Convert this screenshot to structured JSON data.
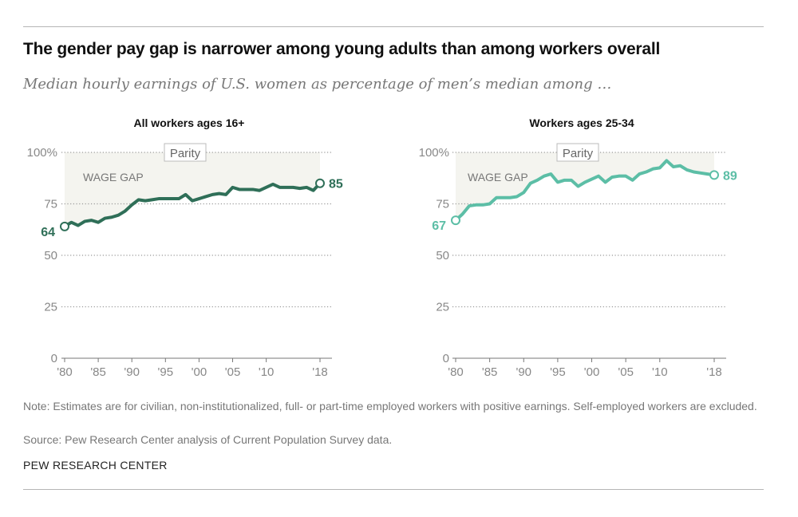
{
  "title": "The gender pay gap is narrower among young adults than among workers overall",
  "subtitle": "Median hourly earnings of U.S. women as percentage of men’s median among …",
  "note": "Note: Estimates are for civilian, non-institutionalized, full- or part-time employed workers with positive earnings. Self-employed workers are excluded.",
  "source": "Source: Pew Research Center analysis of Current Population Survey data.",
  "brand": "PEW RESEARCH CENTER",
  "chart_data": [
    {
      "type": "line",
      "title": "All workers ages 16+",
      "color": "#2f6f58",
      "ylim": [
        0,
        100
      ],
      "yticks": [
        "0",
        "25",
        "50",
        "75",
        "100%"
      ],
      "ytick_values": [
        0,
        25,
        50,
        75,
        100
      ],
      "xticks": [
        "'80",
        "'85",
        "'90",
        "'95",
        "'00",
        "'05",
        "'10",
        "'18"
      ],
      "xtick_values": [
        1980,
        1985,
        1990,
        1995,
        2000,
        2005,
        2010,
        2018
      ],
      "grid": true,
      "annotations": {
        "parity": "Parity",
        "wage_gap": "WAGE GAP",
        "start_label": "64",
        "end_label": "85"
      },
      "x": [
        1980,
        1981,
        1982,
        1983,
        1984,
        1985,
        1986,
        1987,
        1988,
        1989,
        1990,
        1991,
        1992,
        1993,
        1994,
        1995,
        1996,
        1997,
        1998,
        1999,
        2000,
        2001,
        2002,
        2003,
        2004,
        2005,
        2006,
        2007,
        2008,
        2009,
        2010,
        2011,
        2012,
        2013,
        2014,
        2015,
        2016,
        2017,
        2018
      ],
      "values": [
        64,
        66,
        64.5,
        66.5,
        67,
        66,
        68,
        68.5,
        69.5,
        71.5,
        74.5,
        77,
        76.5,
        77,
        77.5,
        77.5,
        77.5,
        77.5,
        79.5,
        76.5,
        77.5,
        78.5,
        79.5,
        80,
        79.5,
        83,
        82,
        82,
        82,
        81.5,
        83,
        84.5,
        83,
        83,
        83,
        82.5,
        83,
        81.5,
        85
      ]
    },
    {
      "type": "line",
      "title": "Workers ages 25-34",
      "color": "#5cbea6",
      "ylim": [
        0,
        100
      ],
      "yticks": [
        "0",
        "25",
        "50",
        "75",
        "100%"
      ],
      "ytick_values": [
        0,
        25,
        50,
        75,
        100
      ],
      "xticks": [
        "'80",
        "'85",
        "'90",
        "'95",
        "'00",
        "'05",
        "'10",
        "'18"
      ],
      "xtick_values": [
        1980,
        1985,
        1990,
        1995,
        2000,
        2005,
        2010,
        2018
      ],
      "grid": true,
      "annotations": {
        "parity": "Parity",
        "wage_gap": "WAGE GAP",
        "start_label": "67",
        "end_label": "89"
      },
      "x": [
        1980,
        1981,
        1982,
        1983,
        1984,
        1985,
        1986,
        1987,
        1988,
        1989,
        1990,
        1991,
        1992,
        1993,
        1994,
        1995,
        1996,
        1997,
        1998,
        1999,
        2000,
        2001,
        2002,
        2003,
        2004,
        2005,
        2006,
        2007,
        2008,
        2009,
        2010,
        2011,
        2012,
        2013,
        2014,
        2015,
        2016,
        2017,
        2018
      ],
      "values": [
        67,
        70,
        74,
        74.5,
        74.5,
        75,
        78,
        78,
        78,
        78.5,
        80.5,
        85,
        86.5,
        88.5,
        89.5,
        85.5,
        86.5,
        86.5,
        83.5,
        85.5,
        87,
        88.5,
        85.5,
        88,
        88.5,
        88.5,
        86.5,
        89.5,
        90.5,
        92,
        92.5,
        96,
        93,
        93.5,
        91.5,
        90.5,
        90,
        89.5,
        89
      ]
    }
  ]
}
